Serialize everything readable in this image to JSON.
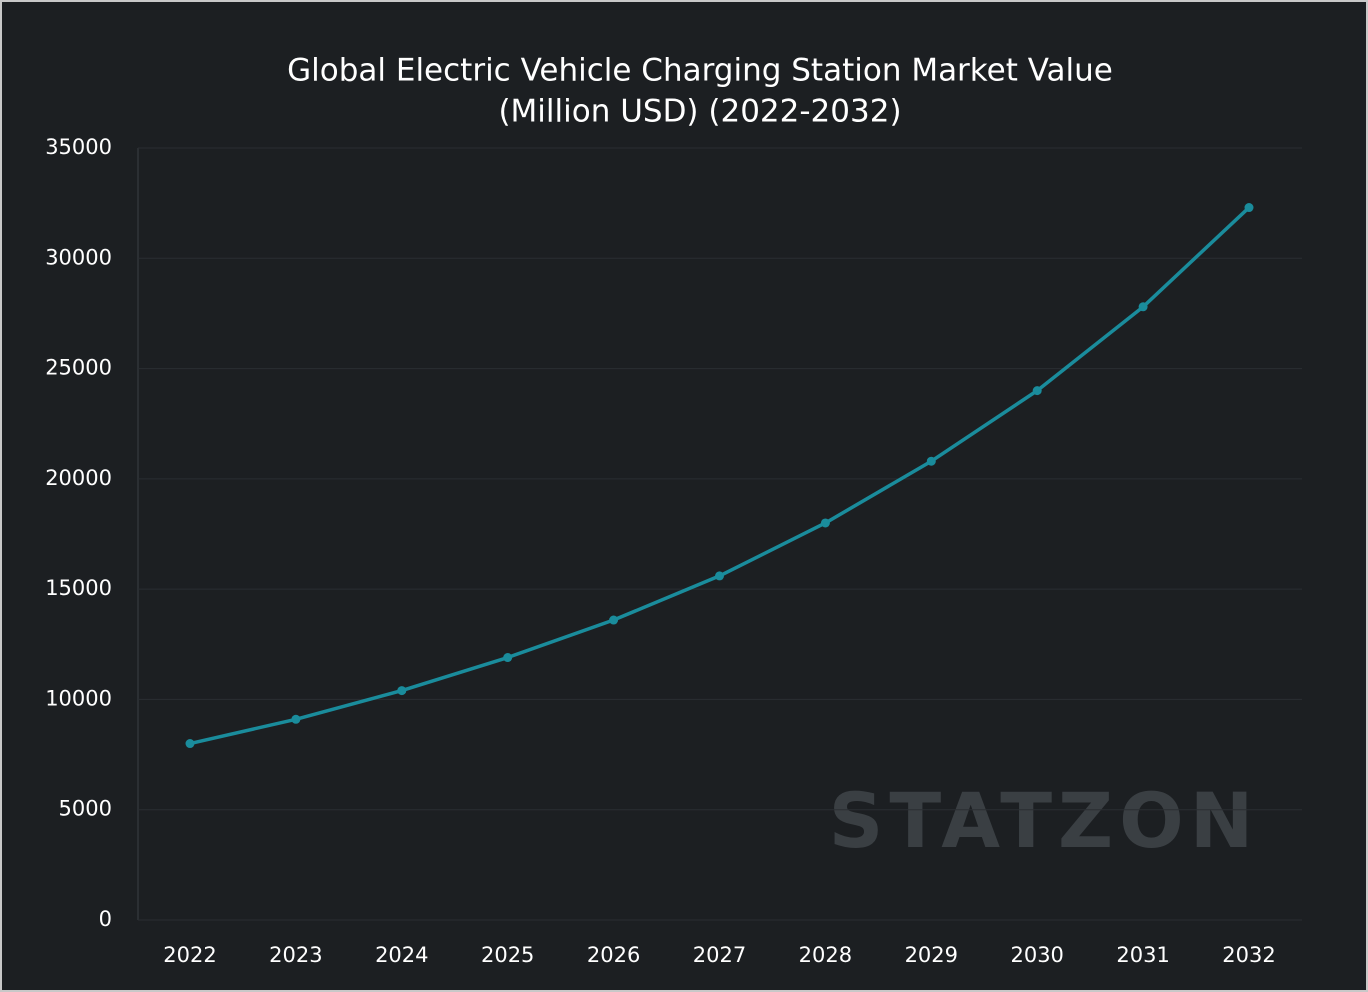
{
  "chart_data": {
    "type": "line",
    "title": [
      "Global Electric Vehicle Charging Station Market Value",
      "(Million USD) (2022-2032)"
    ],
    "categories": [
      "2022",
      "2023",
      "2024",
      "2025",
      "2026",
      "2027",
      "2028",
      "2029",
      "2030",
      "2031",
      "2032"
    ],
    "values": [
      8000,
      9100,
      10400,
      11900,
      13600,
      15600,
      18000,
      20800,
      24000,
      27800,
      32300
    ],
    "color": "#1a8c9c",
    "ylim": [
      0,
      35000
    ],
    "yticks": [
      0,
      5000,
      10000,
      15000,
      20000,
      25000,
      30000,
      35000
    ],
    "grid": true,
    "watermark": "STATZON"
  }
}
